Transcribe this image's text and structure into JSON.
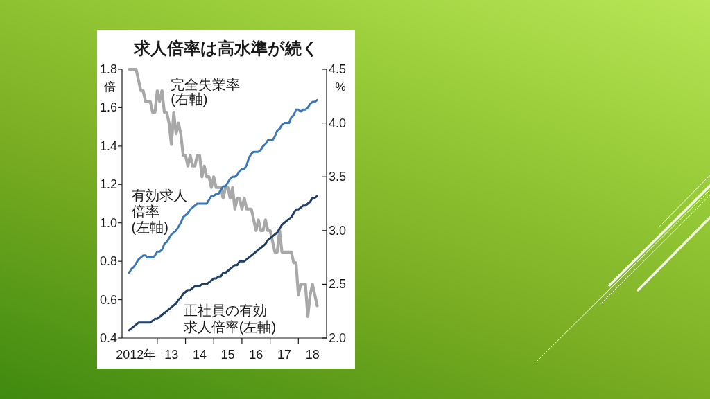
{
  "chart_data": {
    "type": "line",
    "title": "求人倍率は高水準が続く",
    "ylabel": "倍",
    "y2label": "%",
    "x": [
      "2012-01",
      "2012-02",
      "2012-03",
      "2012-04",
      "2012-05",
      "2012-06",
      "2012-07",
      "2012-08",
      "2012-09",
      "2012-10",
      "2012-11",
      "2012-12",
      "2013-01",
      "2013-02",
      "2013-03",
      "2013-04",
      "2013-05",
      "2013-06",
      "2013-07",
      "2013-08",
      "2013-09",
      "2013-10",
      "2013-11",
      "2013-12",
      "2014-01",
      "2014-02",
      "2014-03",
      "2014-04",
      "2014-05",
      "2014-06",
      "2014-07",
      "2014-08",
      "2014-09",
      "2014-10",
      "2014-11",
      "2014-12",
      "2015-01",
      "2015-02",
      "2015-03",
      "2015-04",
      "2015-05",
      "2015-06",
      "2015-07",
      "2015-08",
      "2015-09",
      "2015-10",
      "2015-11",
      "2015-12",
      "2016-01",
      "2016-02",
      "2016-03",
      "2016-04",
      "2016-05",
      "2016-06",
      "2016-07",
      "2016-08",
      "2016-09",
      "2016-10",
      "2016-11",
      "2016-12",
      "2017-01",
      "2017-02",
      "2017-03",
      "2017-04",
      "2017-05",
      "2017-06",
      "2017-07",
      "2017-08",
      "2017-09",
      "2017-10",
      "2017-11",
      "2017-12",
      "2018-01",
      "2018-02",
      "2018-03",
      "2018-04",
      "2018-05",
      "2018-06",
      "2018-07",
      "2018-08",
      "2018-09"
    ],
    "xlim": [
      "2011-10",
      "2019-01"
    ],
    "xticks": [
      {
        "value": "2012-04",
        "label": "2012年"
      },
      {
        "value": "2013-07",
        "label": "13"
      },
      {
        "value": "2014-07",
        "label": "14"
      },
      {
        "value": "2015-07",
        "label": "15"
      },
      {
        "value": "2016-07",
        "label": "16"
      },
      {
        "value": "2017-07",
        "label": "17"
      },
      {
        "value": "2018-07",
        "label": "18"
      },
      {
        "value": "2013-01",
        "label": null
      },
      {
        "value": "2014-01",
        "label": null
      },
      {
        "value": "2015-01",
        "label": null
      },
      {
        "value": "2016-01",
        "label": null
      },
      {
        "value": "2017-01",
        "label": null
      },
      {
        "value": "2018-01",
        "label": null
      }
    ],
    "ylim": [
      0.4,
      1.8
    ],
    "yticks": [
      0.4,
      0.6,
      0.8,
      {
        "value": 1,
        "label": "1.0"
      },
      1.2,
      1.4,
      1.6,
      1.8
    ],
    "y2lim": [
      2,
      4.5
    ],
    "y2ticks": [
      {
        "value": 2,
        "label": "2.0"
      },
      2.5,
      {
        "value": 3,
        "label": "3.0"
      },
      3.5,
      {
        "value": 4,
        "label": "4.0"
      },
      4.5
    ],
    "line_style": "solid",
    "series": [
      {
        "name": "完全失業率(右軸)",
        "color": "#a8a8a8",
        "axis": "y2",
        "values": [
          4.5,
          4.5,
          4.5,
          4.5,
          4.4,
          4.3,
          4.3,
          4.2,
          4.2,
          4.2,
          4.1,
          4.1,
          4.3,
          4.2,
          4.3,
          4.1,
          4.1,
          4.0,
          3.8,
          4.1,
          3.9,
          4.0,
          3.9,
          3.7,
          3.7,
          3.6,
          3.7,
          3.6,
          3.6,
          3.7,
          3.7,
          3.5,
          3.6,
          3.5,
          3.5,
          3.4,
          3.5,
          3.4,
          3.4,
          3.4,
          3.3,
          3.4,
          3.4,
          3.3,
          3.4,
          3.2,
          3.3,
          3.3,
          3.2,
          3.3,
          3.2,
          3.2,
          3.2,
          3.1,
          3.0,
          3.1,
          3.0,
          3.0,
          3.1,
          3.0,
          3.0,
          2.9,
          2.8,
          2.8,
          3.0,
          2.8,
          2.8,
          2.8,
          2.8,
          2.8,
          2.7,
          2.7,
          2.4,
          2.5,
          2.5,
          2.5,
          2.2,
          2.4,
          2.5,
          2.4,
          2.3
        ]
      },
      {
        "name": "有効求人倍率(左軸)",
        "color": "#3b78b8",
        "values": [
          0.74,
          0.76,
          0.77,
          0.79,
          0.81,
          0.82,
          0.83,
          0.83,
          0.82,
          0.82,
          0.82,
          0.83,
          0.85,
          0.85,
          0.86,
          0.89,
          0.9,
          0.92,
          0.94,
          0.95,
          0.96,
          0.98,
          1.0,
          1.03,
          1.04,
          1.05,
          1.07,
          1.08,
          1.09,
          1.1,
          1.1,
          1.1,
          1.1,
          1.1,
          1.12,
          1.14,
          1.14,
          1.15,
          1.15,
          1.17,
          1.19,
          1.19,
          1.21,
          1.23,
          1.24,
          1.24,
          1.25,
          1.27,
          1.28,
          1.28,
          1.3,
          1.34,
          1.36,
          1.37,
          1.37,
          1.37,
          1.38,
          1.4,
          1.41,
          1.43,
          1.43,
          1.43,
          1.45,
          1.48,
          1.49,
          1.51,
          1.52,
          1.52,
          1.52,
          1.55,
          1.56,
          1.59,
          1.59,
          1.58,
          1.59,
          1.59,
          1.6,
          1.62,
          1.63,
          1.63,
          1.64
        ]
      },
      {
        "name": "正社員の有効求人倍率(左軸)",
        "color": "#1f3f66",
        "values": [
          0.44,
          0.45,
          0.46,
          0.47,
          0.48,
          0.48,
          0.48,
          0.48,
          0.48,
          0.48,
          0.49,
          0.5,
          0.5,
          0.51,
          0.52,
          0.53,
          0.54,
          0.55,
          0.56,
          0.57,
          0.58,
          0.6,
          0.61,
          0.63,
          0.64,
          0.65,
          0.65,
          0.66,
          0.67,
          0.67,
          0.67,
          0.68,
          0.68,
          0.68,
          0.69,
          0.7,
          0.71,
          0.71,
          0.72,
          0.72,
          0.74,
          0.74,
          0.75,
          0.76,
          0.77,
          0.78,
          0.78,
          0.8,
          0.8,
          0.8,
          0.81,
          0.82,
          0.83,
          0.84,
          0.85,
          0.86,
          0.87,
          0.88,
          0.89,
          0.91,
          0.92,
          0.93,
          0.94,
          0.95,
          0.97,
          0.99,
          1.0,
          1.01,
          1.02,
          1.03,
          1.05,
          1.07,
          1.07,
          1.08,
          1.09,
          1.09,
          1.1,
          1.11,
          1.13,
          1.13,
          1.14
        ]
      }
    ]
  }
}
